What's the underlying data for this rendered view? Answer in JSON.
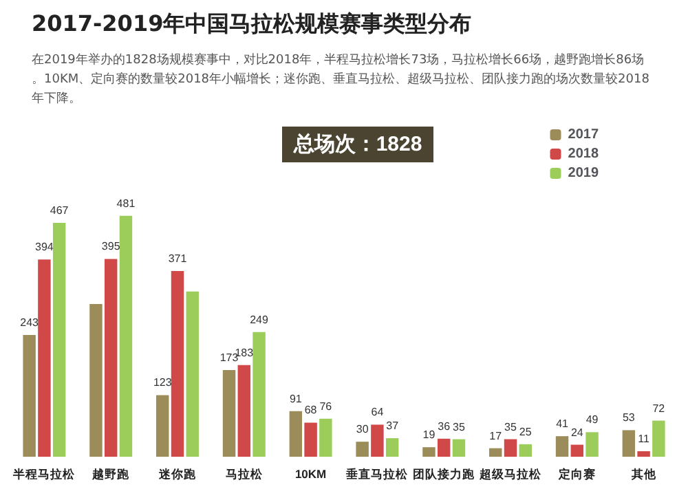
{
  "chart_data": {
    "type": "bar",
    "title": "2017-2019年中国马拉松规模赛事类型分布",
    "subtitle": "在2019年举办的1828场规模赛事中，对比2018年，半程马拉松增长73场，马拉松增长66场，越野跑增长86场。10KM、定向赛的数量较2018年小幅增长；迷你跑、垂直马拉松、超级马拉松、团队接力跑的场次数量较2018年下降。",
    "annotations": [
      "总场次：1828"
    ],
    "categories": [
      "半程马拉松",
      "越野跑",
      "迷你跑",
      "马拉松",
      "10KM",
      "垂直马拉松",
      "团队接力跑",
      "超级马拉松",
      "定向赛",
      "其他"
    ],
    "series": [
      {
        "name": "2017",
        "color": "#9b8c5a",
        "values": [
          243,
          305,
          123,
          173,
          91,
          30,
          19,
          17,
          41,
          53
        ],
        "value_labels": [
          "243",
          null,
          "123",
          "173",
          "91",
          "30",
          "19",
          "17",
          "41",
          "53"
        ]
      },
      {
        "name": "2018",
        "color": "#d04848",
        "values": [
          394,
          395,
          371,
          183,
          68,
          64,
          36,
          35,
          24,
          11
        ],
        "value_labels": [
          "394",
          "395",
          "371",
          "183",
          "68",
          "64",
          "36",
          "35",
          "24",
          "11"
        ]
      },
      {
        "name": "2019",
        "color": "#9ccc5a",
        "values": [
          467,
          481,
          330,
          249,
          76,
          37,
          35,
          25,
          49,
          72
        ],
        "value_labels": [
          "467",
          "481",
          null,
          "249",
          "76",
          "37",
          "35",
          "25",
          "49",
          "72"
        ]
      }
    ],
    "legend": "top right"
  }
}
